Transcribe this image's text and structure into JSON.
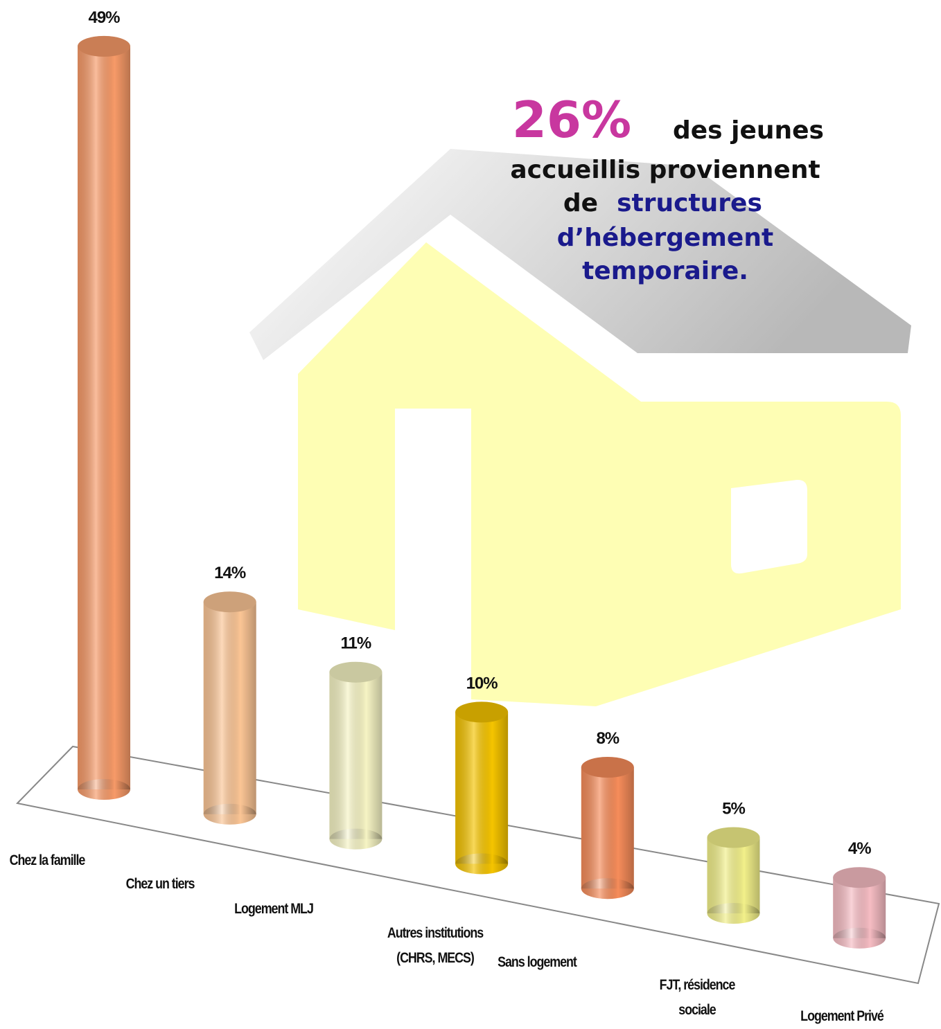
{
  "chart_data": {
    "type": "bar3d",
    "categories": [
      "Chez la famille",
      "Chez un tiers",
      "Logement MLJ",
      "Autres institutions (CHRS, MECS)",
      "Sans logement",
      "FJT, résidence sociale",
      "Logement Privé"
    ],
    "values": [
      49,
      14,
      11,
      10,
      8,
      5,
      4
    ],
    "value_labels": [
      "49%",
      "14%",
      "11%",
      "10%",
      "8%",
      "5%",
      "4%"
    ],
    "colors": [
      "#f79a68",
      "#fbc595",
      "#f6f4c4",
      "#f5c400",
      "#f68c5a",
      "#f2f08a",
      "#f6bcc3"
    ],
    "annotation": {
      "highlight": "26%",
      "line1": "des jeunes",
      "line2": "accueillis proviennent",
      "line3": "de",
      "emphasis": [
        "structures",
        "d’hébergement",
        "temporaire."
      ]
    }
  }
}
